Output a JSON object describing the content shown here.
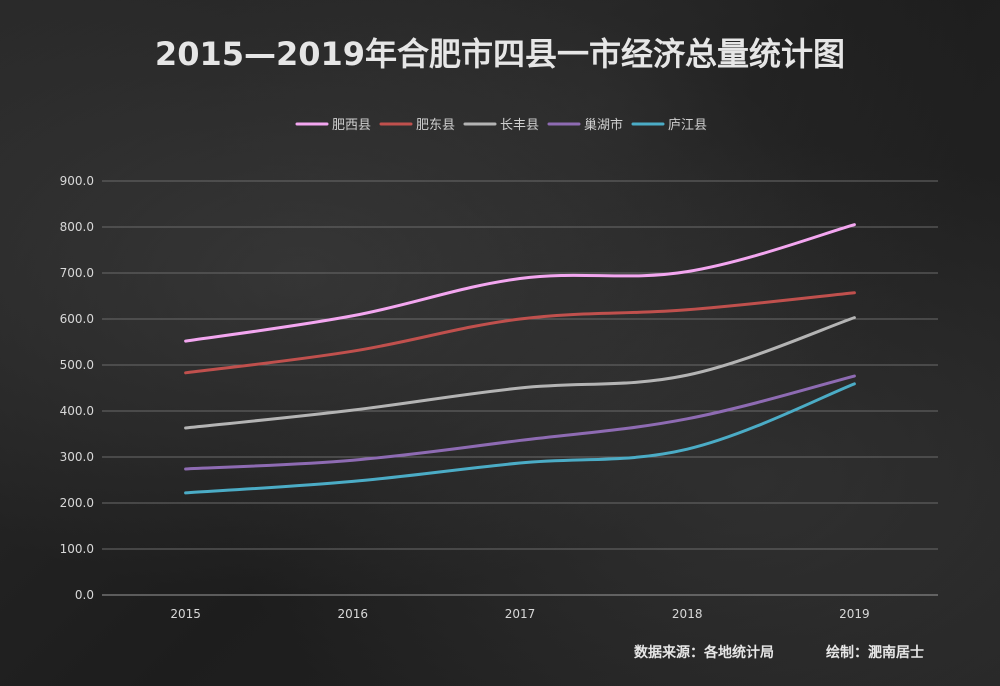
{
  "chart_data": {
    "type": "line",
    "title": "2015—2019年合肥市四县一市经济总量统计图",
    "categories": [
      "2015",
      "2016",
      "2017",
      "2018",
      "2019"
    ],
    "series": [
      {
        "name": "肥西县",
        "color": "#f3a6f0",
        "values": [
          552,
          607,
          688,
          703,
          805
        ]
      },
      {
        "name": "肥东县",
        "color": "#c0504d",
        "values": [
          483,
          530,
          600,
          620,
          657
        ]
      },
      {
        "name": "长丰县",
        "color": "#b4b4b4",
        "values": [
          363,
          402,
          450,
          478,
          603
        ]
      },
      {
        "name": "巢湖市",
        "color": "#8e6bb3",
        "values": [
          274,
          293,
          336,
          383,
          476
        ]
      },
      {
        "name": "庐江县",
        "color": "#4bacc6",
        "values": [
          222,
          247,
          287,
          317,
          459
        ]
      }
    ],
    "yticks": [
      "0.0",
      "100.0",
      "200.0",
      "300.0",
      "400.0",
      "500.0",
      "600.0",
      "700.0",
      "800.0",
      "900.0"
    ],
    "ylim": [
      0,
      900
    ],
    "grid": true,
    "legend_position": "top-center"
  },
  "footer": {
    "source_label": "数据来源：各地统计局",
    "author_label": "绘制：淝南居士"
  }
}
